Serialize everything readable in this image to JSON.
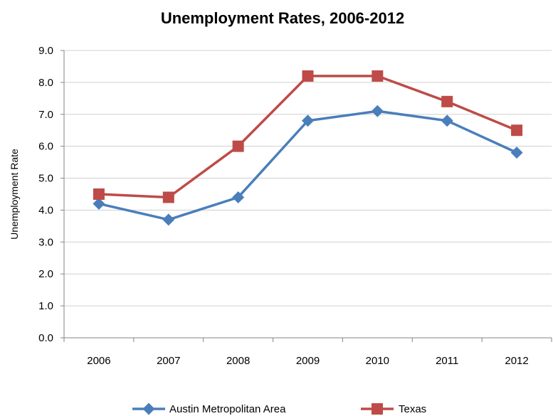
{
  "chart_data": {
    "type": "line",
    "title": "Unemployment Rates, 2006-2012",
    "xlabel": "",
    "ylabel": "Unemployment Rate",
    "categories": [
      "2006",
      "2007",
      "2008",
      "2009",
      "2010",
      "2011",
      "2012"
    ],
    "ylim": [
      0,
      9
    ],
    "yticks": [
      "0.0",
      "1.0",
      "2.0",
      "3.0",
      "4.0",
      "5.0",
      "6.0",
      "7.0",
      "8.0",
      "9.0"
    ],
    "grid": true,
    "legend_position": "bottom",
    "series": [
      {
        "name": "Austin Metropolitan Area",
        "values": [
          4.2,
          3.7,
          4.4,
          6.8,
          7.1,
          6.8,
          5.8
        ],
        "color": "#4a7ebb",
        "marker": "diamond"
      },
      {
        "name": "Texas",
        "values": [
          4.5,
          4.4,
          6.0,
          8.2,
          8.2,
          7.4,
          6.5
        ],
        "color": "#be4b48",
        "marker": "square"
      }
    ]
  }
}
